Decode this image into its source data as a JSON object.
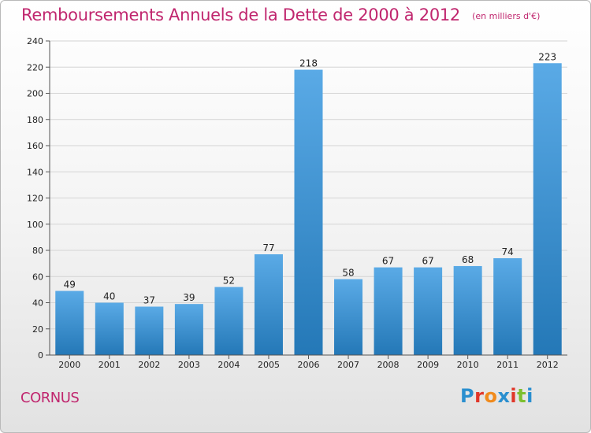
{
  "chart_data": {
    "type": "bar",
    "title": "Remboursements Annuels de la Dette de 2000 à 2012",
    "subtitle": "(en milliers d'€)",
    "categories": [
      "2000",
      "2001",
      "2002",
      "2003",
      "2004",
      "2005",
      "2006",
      "2007",
      "2008",
      "2009",
      "2010",
      "2011",
      "2012"
    ],
    "values": [
      49,
      40,
      37,
      39,
      52,
      77,
      218,
      58,
      67,
      67,
      68,
      74,
      223
    ],
    "ylim": [
      0,
      240
    ],
    "yticks": [
      0,
      20,
      40,
      60,
      80,
      100,
      120,
      140,
      160,
      180,
      200,
      220,
      240
    ],
    "grid": true,
    "colors": {
      "bar_top": "#5aaae6",
      "bar_bottom": "#2478b7",
      "grid": "#d4d4d4",
      "axis": "#555555"
    }
  },
  "footer": {
    "commune": "CORNUS"
  },
  "logo": {
    "text": "Proxiti",
    "colors": [
      "#2a8fcf",
      "#e0372a",
      "#f08a1c",
      "#2a8fcf",
      "#e0372a",
      "#7cbf2f",
      "#2a8fcf"
    ]
  }
}
